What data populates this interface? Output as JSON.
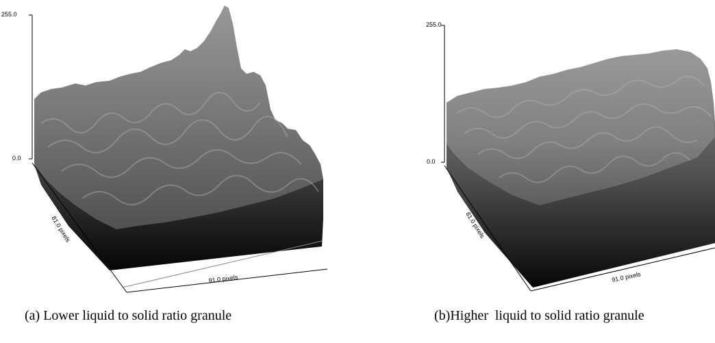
{
  "figure": {
    "panels": [
      {
        "z_max_label": "255.0",
        "z_min_label": "0.0",
        "y_axis_label": "81.0 pixels",
        "x_axis_label": "91.0 pixels",
        "caption": "(a) Lower liquid to solid ratio granule"
      },
      {
        "z_max_label": "255.0",
        "z_min_label": "0.0",
        "y_axis_label": "81.0 pixels",
        "x_axis_label": "91.0 pixels",
        "caption": "(b)Higher  liquid to solid ratio granule"
      }
    ]
  }
}
